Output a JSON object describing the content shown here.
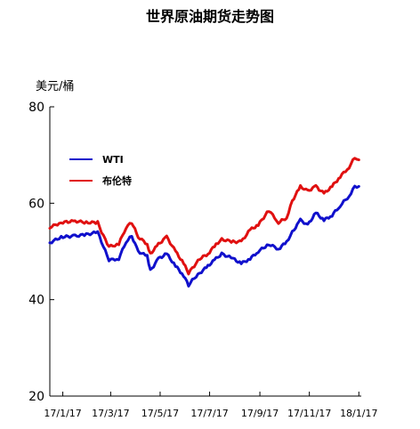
{
  "chart_data": {
    "type": "line",
    "title": "世界原油期货走势图",
    "ylabel": "美元/桶",
    "ylim": [
      20,
      80
    ],
    "yticks": [
      "80",
      "60",
      "40",
      "20"
    ],
    "ytick_values": [
      80,
      60,
      40,
      20
    ],
    "xlim": [
      "2017-01-01",
      "2018-01-20"
    ],
    "xticks": [
      "17/1/17",
      "17/3/17",
      "17/5/17",
      "17/7/17",
      "17/9/17",
      "17/11/17",
      "18/1/17"
    ],
    "xtick_dates": [
      "2017-01-17",
      "2017-03-17",
      "2017-05-17",
      "2017-07-17",
      "2017-09-17",
      "2017-11-17",
      "2018-01-17"
    ],
    "grid": false,
    "legend_position": "upper-left",
    "colors": {
      "WTI": "#1010cc",
      "布伦特": "#e01010"
    },
    "series": [
      {
        "name": "WTI",
        "x": [
          "2017-01-01",
          "2017-01-15",
          "2017-02-01",
          "2017-02-15",
          "2017-03-01",
          "2017-03-08",
          "2017-03-15",
          "2017-03-27",
          "2017-04-05",
          "2017-04-12",
          "2017-04-20",
          "2017-05-01",
          "2017-05-05",
          "2017-05-15",
          "2017-05-25",
          "2017-06-05",
          "2017-06-15",
          "2017-06-21",
          "2017-06-28",
          "2017-07-05",
          "2017-07-15",
          "2017-07-25",
          "2017-08-01",
          "2017-08-15",
          "2017-08-25",
          "2017-09-05",
          "2017-09-15",
          "2017-09-28",
          "2017-10-10",
          "2017-10-20",
          "2017-10-27",
          "2017-11-06",
          "2017-11-15",
          "2017-11-25",
          "2017-12-05",
          "2017-12-15",
          "2017-12-25",
          "2018-01-05",
          "2018-01-12",
          "2018-01-17"
        ],
        "values": [
          51.8,
          53,
          53.2,
          53.5,
          54,
          51,
          48.2,
          48.5,
          52,
          53.2,
          50,
          49,
          46,
          48.5,
          49.5,
          47,
          45,
          43,
          44.5,
          45.5,
          47,
          48.5,
          49.5,
          48.5,
          47.5,
          48.5,
          50,
          51.5,
          50.5,
          52,
          54,
          56.5,
          55.5,
          58,
          56.5,
          57.5,
          59.5,
          61.5,
          63.5,
          63.5
        ]
      },
      {
        "name": "布伦特",
        "x": [
          "2017-01-01",
          "2017-01-15",
          "2017-02-01",
          "2017-02-15",
          "2017-03-01",
          "2017-03-08",
          "2017-03-15",
          "2017-03-27",
          "2017-04-05",
          "2017-04-12",
          "2017-04-20",
          "2017-05-01",
          "2017-05-05",
          "2017-05-15",
          "2017-05-25",
          "2017-06-05",
          "2017-06-15",
          "2017-06-21",
          "2017-06-28",
          "2017-07-05",
          "2017-07-15",
          "2017-07-25",
          "2017-08-01",
          "2017-08-15",
          "2017-08-25",
          "2017-09-05",
          "2017-09-15",
          "2017-09-28",
          "2017-10-10",
          "2017-10-20",
          "2017-10-27",
          "2017-11-06",
          "2017-11-15",
          "2017-11-25",
          "2017-12-05",
          "2017-12-15",
          "2017-12-25",
          "2018-01-05",
          "2018-01-12",
          "2018-01-17"
        ],
        "values": [
          55,
          56,
          56.3,
          56,
          56,
          53.2,
          51,
          51.5,
          55,
          56,
          53,
          51.5,
          49.5,
          51.5,
          53,
          50,
          47.5,
          45.5,
          47,
          48.5,
          49.5,
          51.5,
          52.5,
          52,
          52,
          54.5,
          55.5,
          58.5,
          56,
          57,
          60.5,
          63.5,
          62.5,
          63.5,
          62,
          63.5,
          65.5,
          67.5,
          69.5,
          69
        ]
      }
    ]
  }
}
